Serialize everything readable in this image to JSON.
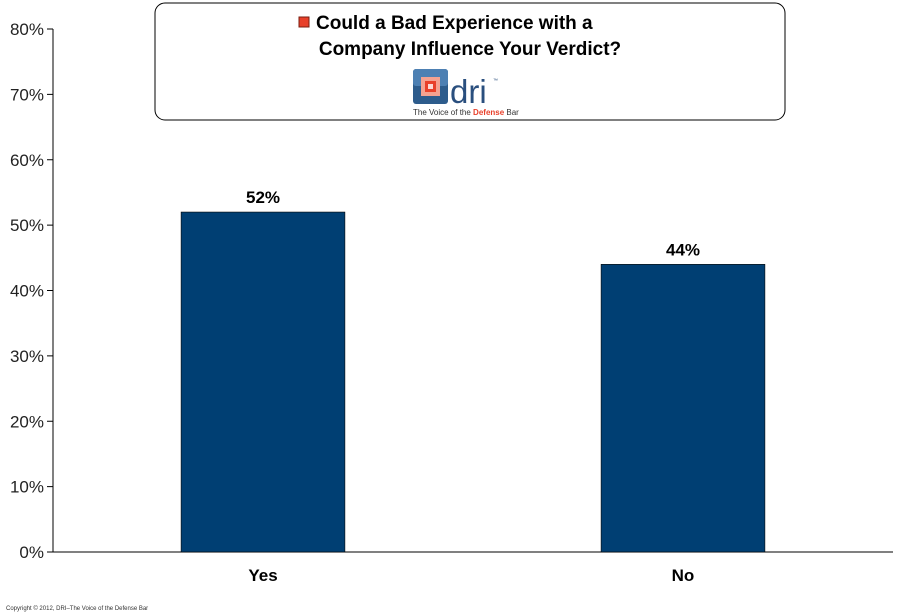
{
  "chart_data": {
    "type": "bar",
    "title_line1": "Could a Bad Experience with a",
    "title_line2": "Company Influence Your Verdict?",
    "categories": [
      "Yes",
      "No"
    ],
    "values": [
      52,
      44
    ],
    "data_labels": [
      "52%",
      "44%"
    ],
    "ylim": [
      0,
      80
    ],
    "yticks": [
      0,
      10,
      20,
      30,
      40,
      50,
      60,
      70,
      80
    ],
    "ytick_labels": [
      "0%",
      "10%",
      "20%",
      "30%",
      "40%",
      "50%",
      "60%",
      "70%",
      "80%"
    ],
    "xlabel": "",
    "ylabel": "",
    "grid": false,
    "legend": "top-center",
    "colors": {
      "bar": "#003f73",
      "legend_marker": "#e8402a"
    }
  },
  "logo": {
    "word": "dri",
    "tm": "™",
    "tagline_pre": "The Voice of the ",
    "tagline_highlight": "Defense",
    "tagline_post": " Bar"
  },
  "footer": {
    "copyright": "Copyright © 2012, DRI–The Voice of the Defense Bar"
  }
}
